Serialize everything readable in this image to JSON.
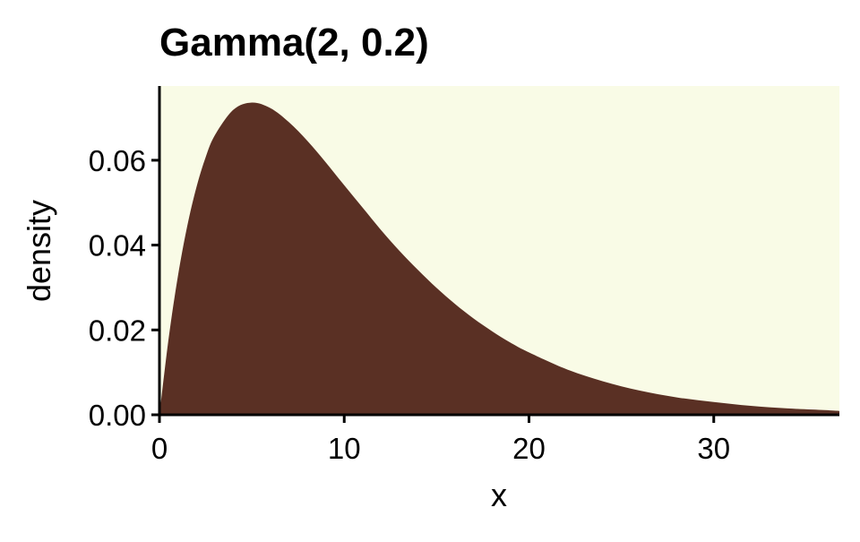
{
  "chart_data": {
    "type": "area",
    "title": "Gamma(2, 0.2)",
    "xlabel": "x",
    "ylabel": "density",
    "xlim": [
      0,
      36.8
    ],
    "ylim": [
      0,
      0.0775
    ],
    "x_ticks": [
      "0",
      "10",
      "20",
      "30"
    ],
    "y_ticks": [
      "0.00",
      "0.02",
      "0.04",
      "0.06"
    ],
    "grid": false,
    "series": [
      {
        "x": [
          0,
          0.5,
          1,
          1.5,
          2,
          2.5,
          3,
          4,
          5,
          6,
          7,
          8,
          9,
          10,
          11,
          12,
          13,
          14,
          15,
          16,
          17,
          18,
          19,
          20,
          22,
          24,
          26,
          28,
          30,
          32,
          34,
          36,
          36.8
        ],
        "y": [
          0.0,
          0.0181,
          0.0327,
          0.0444,
          0.0536,
          0.0607,
          0.0659,
          0.0719,
          0.0736,
          0.0723,
          0.069,
          0.0646,
          0.0595,
          0.0541,
          0.0488,
          0.0435,
          0.0386,
          0.0341,
          0.0299,
          0.0261,
          0.0227,
          0.0197,
          0.017,
          0.0147,
          0.0108,
          0.0079,
          0.0057,
          0.0041,
          0.003,
          0.0021,
          0.0015,
          0.0011,
          0.0009
        ]
      }
    ],
    "colors": {
      "fill": "#5a3024",
      "panel_background": "#f9fbe6",
      "axis": "#000000"
    }
  }
}
